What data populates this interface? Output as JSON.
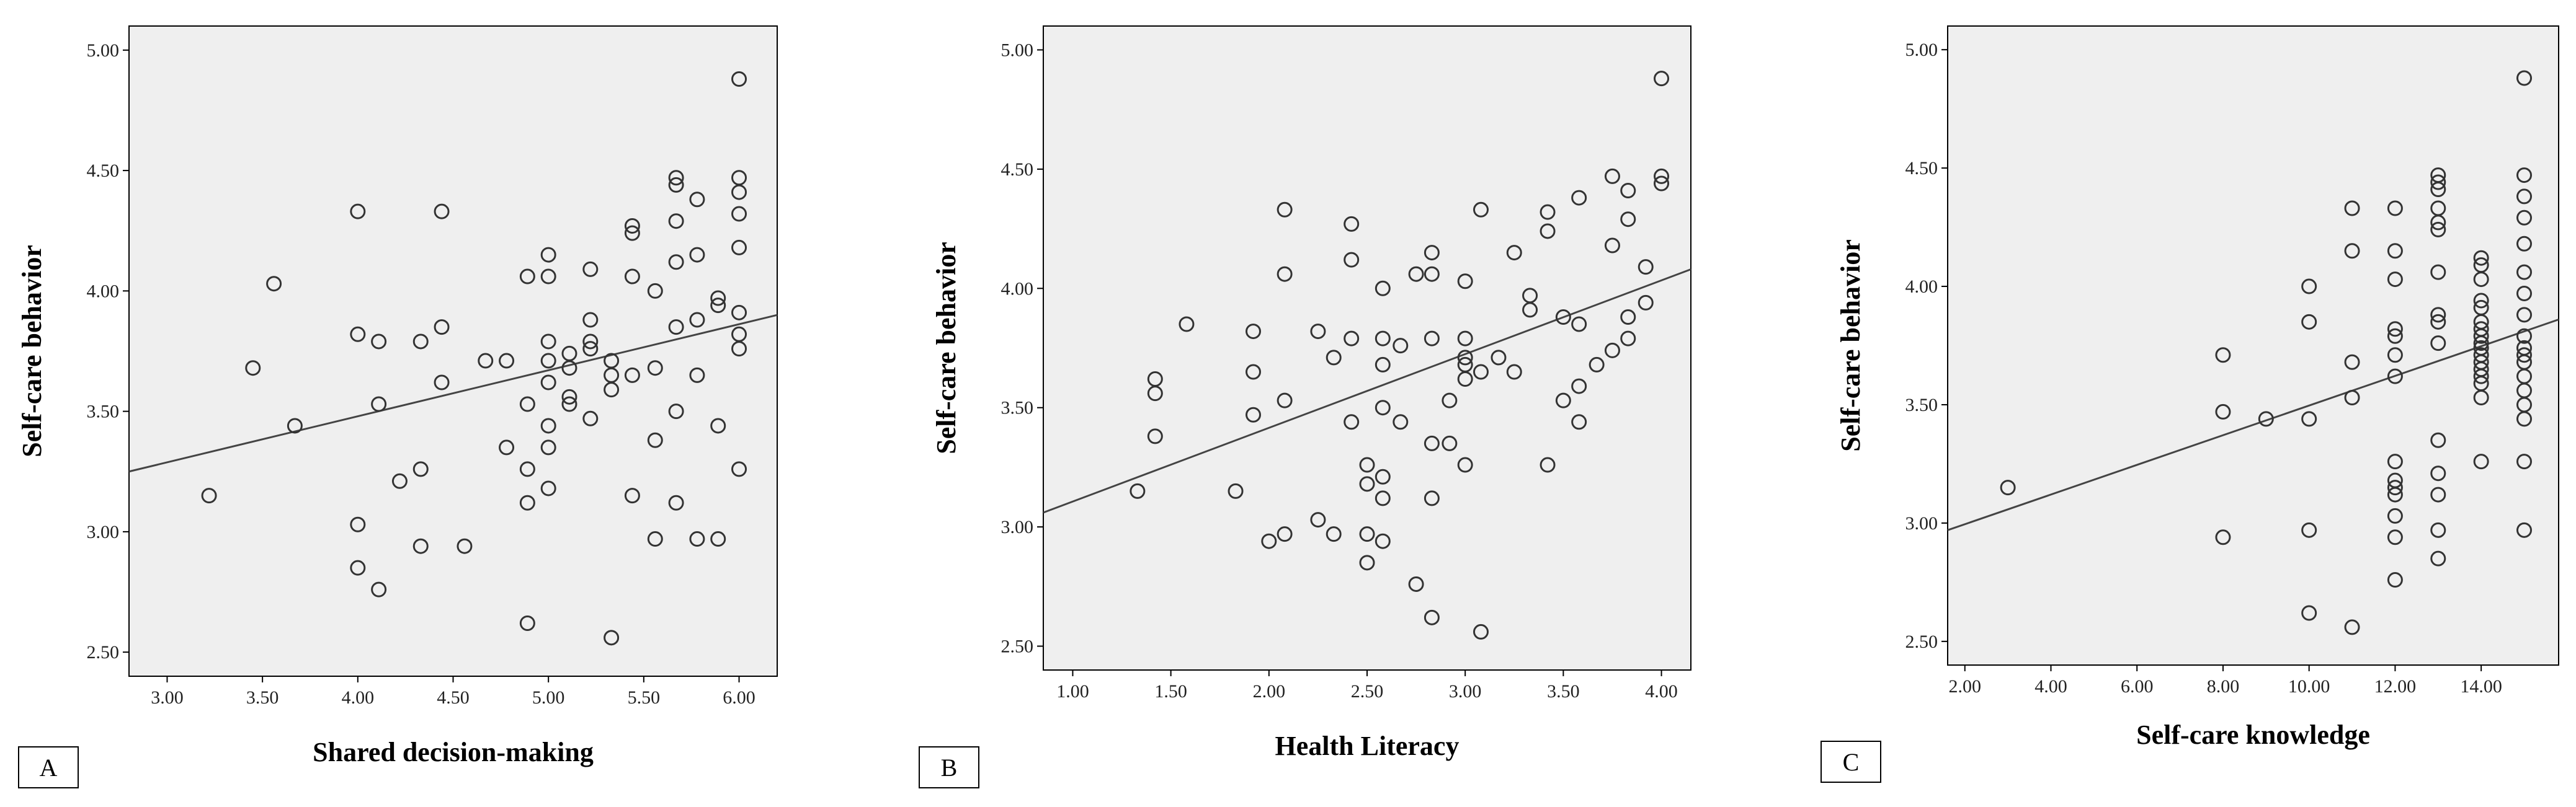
{
  "chart_data": [
    {
      "type": "scatter",
      "panel_label": "A",
      "xlabel": "Shared decision-making",
      "ylabel": "Self-care behavior",
      "xlim": [
        2.8,
        6.2
      ],
      "ylim": [
        2.4,
        5.1
      ],
      "xticks": [
        "3.00",
        "3.50",
        "4.00",
        "4.50",
        "5.00",
        "5.50",
        "6.00"
      ],
      "yticks": [
        "2.50",
        "3.00",
        "3.50",
        "4.00",
        "4.50",
        "5.00"
      ],
      "grid": false,
      "points": [
        [
          3.22,
          3.15
        ],
        [
          3.45,
          3.68
        ],
        [
          3.56,
          4.03
        ],
        [
          3.67,
          3.44
        ],
        [
          4.0,
          4.33
        ],
        [
          4.0,
          3.82
        ],
        [
          4.0,
          3.03
        ],
        [
          4.0,
          2.85
        ],
        [
          4.11,
          3.79
        ],
        [
          4.11,
          3.53
        ],
        [
          4.11,
          2.76
        ],
        [
          4.22,
          3.21
        ],
        [
          4.33,
          3.79
        ],
        [
          4.33,
          3.26
        ],
        [
          4.33,
          2.94
        ],
        [
          4.44,
          4.33
        ],
        [
          4.44,
          3.85
        ],
        [
          4.44,
          3.62
        ],
        [
          4.56,
          2.94
        ],
        [
          4.67,
          3.71
        ],
        [
          4.78,
          3.71
        ],
        [
          4.78,
          3.35
        ],
        [
          4.89,
          4.06
        ],
        [
          4.89,
          3.53
        ],
        [
          4.89,
          3.26
        ],
        [
          4.89,
          3.12
        ],
        [
          4.89,
          2.62
        ],
        [
          5.0,
          4.15
        ],
        [
          5.0,
          4.06
        ],
        [
          5.0,
          3.79
        ],
        [
          5.0,
          3.71
        ],
        [
          5.0,
          3.62
        ],
        [
          5.0,
          3.44
        ],
        [
          5.0,
          3.35
        ],
        [
          5.0,
          3.18
        ],
        [
          5.11,
          3.74
        ],
        [
          5.11,
          3.68
        ],
        [
          5.11,
          3.56
        ],
        [
          5.11,
          3.53
        ],
        [
          5.22,
          4.09
        ],
        [
          5.22,
          3.88
        ],
        [
          5.22,
          3.79
        ],
        [
          5.22,
          3.76
        ],
        [
          5.22,
          3.47
        ],
        [
          5.33,
          3.71
        ],
        [
          5.33,
          3.65
        ],
        [
          5.33,
          3.59
        ],
        [
          5.33,
          2.56
        ],
        [
          5.44,
          4.27
        ],
        [
          5.44,
          4.24
        ],
        [
          5.44,
          4.06
        ],
        [
          5.44,
          3.65
        ],
        [
          5.44,
          3.15
        ],
        [
          5.56,
          4.0
        ],
        [
          5.56,
          3.68
        ],
        [
          5.56,
          3.38
        ],
        [
          5.56,
          2.97
        ],
        [
          5.67,
          4.47
        ],
        [
          5.67,
          4.44
        ],
        [
          5.67,
          4.29
        ],
        [
          5.67,
          4.12
        ],
        [
          5.67,
          3.85
        ],
        [
          5.67,
          3.5
        ],
        [
          5.67,
          3.12
        ],
        [
          5.78,
          4.38
        ],
        [
          5.78,
          4.15
        ],
        [
          5.78,
          3.88
        ],
        [
          5.78,
          3.65
        ],
        [
          5.78,
          2.97
        ],
        [
          5.89,
          3.97
        ],
        [
          5.89,
          3.94
        ],
        [
          5.89,
          3.44
        ],
        [
          5.89,
          2.97
        ],
        [
          6.0,
          4.88
        ],
        [
          6.0,
          4.47
        ],
        [
          6.0,
          4.41
        ],
        [
          6.0,
          4.32
        ],
        [
          6.0,
          4.18
        ],
        [
          6.0,
          3.91
        ],
        [
          6.0,
          3.82
        ],
        [
          6.0,
          3.76
        ],
        [
          6.0,
          3.26
        ]
      ],
      "fit_line": [
        [
          2.8,
          3.25
        ],
        [
          6.2,
          3.9
        ]
      ]
    },
    {
      "type": "scatter",
      "panel_label": "B",
      "xlabel": "Health Literacy",
      "ylabel": "Self-care behavior",
      "xlim": [
        0.85,
        4.15
      ],
      "ylim": [
        2.4,
        5.1
      ],
      "xticks": [
        "1.00",
        "1.50",
        "2.00",
        "2.50",
        "3.00",
        "3.50",
        "4.00"
      ],
      "yticks": [
        "2.50",
        "3.00",
        "3.50",
        "4.00",
        "4.50",
        "5.00"
      ],
      "grid": false,
      "points": [
        [
          1.33,
          3.15
        ],
        [
          1.42,
          3.62
        ],
        [
          1.42,
          3.56
        ],
        [
          1.42,
          3.38
        ],
        [
          1.58,
          3.85
        ],
        [
          1.83,
          3.15
        ],
        [
          1.92,
          3.82
        ],
        [
          1.92,
          3.65
        ],
        [
          1.92,
          3.47
        ],
        [
          2.0,
          2.94
        ],
        [
          2.08,
          4.33
        ],
        [
          2.08,
          4.06
        ],
        [
          2.08,
          3.53
        ],
        [
          2.08,
          2.97
        ],
        [
          2.25,
          3.82
        ],
        [
          2.25,
          3.03
        ],
        [
          2.33,
          3.71
        ],
        [
          2.33,
          2.97
        ],
        [
          2.42,
          4.27
        ],
        [
          2.42,
          4.12
        ],
        [
          2.42,
          3.79
        ],
        [
          2.42,
          3.44
        ],
        [
          2.5,
          3.26
        ],
        [
          2.5,
          3.18
        ],
        [
          2.5,
          2.97
        ],
        [
          2.5,
          2.85
        ],
        [
          2.58,
          4.0
        ],
        [
          2.58,
          3.79
        ],
        [
          2.58,
          3.68
        ],
        [
          2.58,
          3.5
        ],
        [
          2.58,
          3.21
        ],
        [
          2.58,
          3.12
        ],
        [
          2.58,
          2.94
        ],
        [
          2.67,
          3.76
        ],
        [
          2.67,
          3.44
        ],
        [
          2.75,
          4.06
        ],
        [
          2.75,
          2.76
        ],
        [
          2.83,
          4.15
        ],
        [
          2.83,
          4.06
        ],
        [
          2.83,
          3.79
        ],
        [
          2.83,
          3.35
        ],
        [
          2.83,
          3.12
        ],
        [
          2.83,
          2.62
        ],
        [
          2.92,
          3.53
        ],
        [
          2.92,
          3.35
        ],
        [
          3.0,
          4.03
        ],
        [
          3.0,
          3.79
        ],
        [
          3.0,
          3.71
        ],
        [
          3.0,
          3.68
        ],
        [
          3.0,
          3.62
        ],
        [
          3.0,
          3.26
        ],
        [
          3.08,
          4.33
        ],
        [
          3.08,
          3.65
        ],
        [
          3.08,
          2.56
        ],
        [
          3.17,
          3.71
        ],
        [
          3.25,
          4.15
        ],
        [
          3.25,
          3.65
        ],
        [
          3.33,
          3.97
        ],
        [
          3.33,
          3.91
        ],
        [
          3.42,
          4.32
        ],
        [
          3.42,
          4.24
        ],
        [
          3.42,
          3.26
        ],
        [
          3.5,
          3.88
        ],
        [
          3.5,
          3.53
        ],
        [
          3.58,
          4.38
        ],
        [
          3.58,
          3.85
        ],
        [
          3.58,
          3.59
        ],
        [
          3.58,
          3.44
        ],
        [
          3.67,
          3.68
        ],
        [
          3.75,
          4.47
        ],
        [
          3.75,
          4.18
        ],
        [
          3.75,
          3.74
        ],
        [
          3.83,
          4.41
        ],
        [
          3.83,
          4.29
        ],
        [
          3.83,
          3.88
        ],
        [
          3.83,
          3.79
        ],
        [
          3.92,
          4.09
        ],
        [
          3.92,
          3.94
        ],
        [
          4.0,
          4.88
        ],
        [
          4.0,
          4.47
        ],
        [
          4.0,
          4.44
        ]
      ],
      "fit_line": [
        [
          0.85,
          3.06
        ],
        [
          4.15,
          4.08
        ]
      ]
    },
    {
      "type": "scatter",
      "panel_label": "C",
      "xlabel": "Self-care knowledge",
      "ylabel": "Self-care behavior",
      "xlim": [
        1.6,
        15.8
      ],
      "ylim": [
        2.4,
        5.1
      ],
      "xticks": [
        "2.00",
        "4.00",
        "6.00",
        "8.00",
        "10.00",
        "12.00",
        "14.00"
      ],
      "yticks": [
        "2.50",
        "3.00",
        "3.50",
        "4.00",
        "4.50",
        "5.00"
      ],
      "grid": false,
      "points": [
        [
          3,
          3.15
        ],
        [
          8,
          3.71
        ],
        [
          8,
          3.47
        ],
        [
          8,
          2.94
        ],
        [
          9,
          3.44
        ],
        [
          10,
          4.0
        ],
        [
          10,
          3.85
        ],
        [
          10,
          3.44
        ],
        [
          10,
          2.97
        ],
        [
          10,
          2.62
        ],
        [
          11,
          4.33
        ],
        [
          11,
          4.15
        ],
        [
          11,
          3.68
        ],
        [
          11,
          3.53
        ],
        [
          11,
          2.56
        ],
        [
          12,
          4.33
        ],
        [
          12,
          4.15
        ],
        [
          12,
          4.03
        ],
        [
          12,
          3.82
        ],
        [
          12,
          3.79
        ],
        [
          12,
          3.71
        ],
        [
          12,
          3.62
        ],
        [
          12,
          3.26
        ],
        [
          12,
          3.18
        ],
        [
          12,
          3.15
        ],
        [
          12,
          3.12
        ],
        [
          12,
          3.03
        ],
        [
          12,
          2.94
        ],
        [
          12,
          2.76
        ],
        [
          13,
          4.47
        ],
        [
          13,
          4.44
        ],
        [
          13,
          4.41
        ],
        [
          13,
          4.33
        ],
        [
          13,
          4.27
        ],
        [
          13,
          4.24
        ],
        [
          13,
          4.06
        ],
        [
          13,
          3.88
        ],
        [
          13,
          3.85
        ],
        [
          13,
          3.76
        ],
        [
          13,
          3.35
        ],
        [
          13,
          3.21
        ],
        [
          13,
          3.12
        ],
        [
          13,
          2.97
        ],
        [
          13,
          2.85
        ],
        [
          14,
          4.12
        ],
        [
          14,
          4.09
        ],
        [
          14,
          4.03
        ],
        [
          14,
          3.94
        ],
        [
          14,
          3.91
        ],
        [
          14,
          3.85
        ],
        [
          14,
          3.82
        ],
        [
          14,
          3.79
        ],
        [
          14,
          3.76
        ],
        [
          14,
          3.74
        ],
        [
          14,
          3.71
        ],
        [
          14,
          3.68
        ],
        [
          14,
          3.65
        ],
        [
          14,
          3.62
        ],
        [
          14,
          3.59
        ],
        [
          14,
          3.53
        ],
        [
          14,
          3.26
        ],
        [
          15,
          4.88
        ],
        [
          15,
          4.47
        ],
        [
          15,
          4.38
        ],
        [
          15,
          4.29
        ],
        [
          15,
          4.18
        ],
        [
          15,
          4.06
        ],
        [
          15,
          3.97
        ],
        [
          15,
          3.88
        ],
        [
          15,
          3.79
        ],
        [
          15,
          3.74
        ],
        [
          15,
          3.71
        ],
        [
          15,
          3.68
        ],
        [
          15,
          3.62
        ],
        [
          15,
          3.56
        ],
        [
          15,
          3.5
        ],
        [
          15,
          3.44
        ],
        [
          15,
          3.26
        ],
        [
          15,
          2.97
        ]
      ],
      "fit_line": [
        [
          1.6,
          2.97
        ],
        [
          15.8,
          3.86
        ]
      ]
    }
  ]
}
